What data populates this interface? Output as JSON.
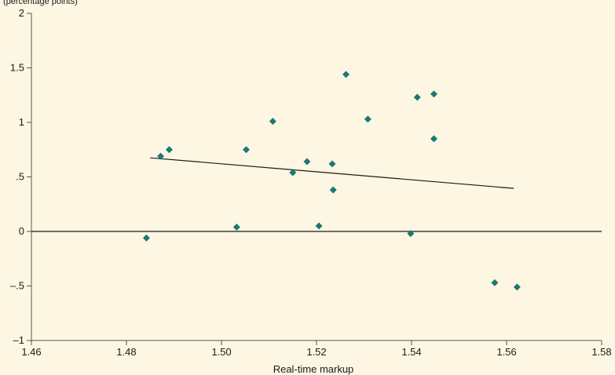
{
  "chart_data": {
    "type": "scatter",
    "title": "",
    "ylabel_top": "(percentage points)",
    "xlabel": "Real-time markup",
    "xlim": [
      1.46,
      1.58
    ],
    "ylim": [
      -1,
      2
    ],
    "x_ticks": [
      1.46,
      1.48,
      1.5,
      1.52,
      1.54,
      1.56,
      1.58
    ],
    "x_tick_labels": [
      "1.46",
      "1.48",
      "1.50",
      "1.52",
      "1.54",
      "1.56",
      "1.58"
    ],
    "y_ticks": [
      -1,
      -0.5,
      0,
      0.5,
      1,
      1.5,
      2
    ],
    "y_tick_labels": [
      "–1",
      "–.5",
      "0",
      ".5",
      "1",
      "1.5",
      "2"
    ],
    "zero_line": true,
    "grid": false,
    "colors": {
      "background": "#fdf6e3",
      "marker": "#1a7a72",
      "line": "#1a1a1a",
      "axis": "#555555"
    },
    "series": [
      {
        "points": [
          {
            "x": 1.4842,
            "y": -0.06
          },
          {
            "x": 1.4872,
            "y": 0.69
          },
          {
            "x": 1.489,
            "y": 0.75
          },
          {
            "x": 1.5032,
            "y": 0.04
          },
          {
            "x": 1.5052,
            "y": 0.75
          },
          {
            "x": 1.5108,
            "y": 1.01
          },
          {
            "x": 1.515,
            "y": 0.54
          },
          {
            "x": 1.518,
            "y": 0.64
          },
          {
            "x": 1.5205,
            "y": 0.05
          },
          {
            "x": 1.5233,
            "y": 0.62
          },
          {
            "x": 1.5235,
            "y": 0.38
          },
          {
            "x": 1.5262,
            "y": 1.44
          },
          {
            "x": 1.5308,
            "y": 1.03
          },
          {
            "x": 1.5398,
            "y": -0.02
          },
          {
            "x": 1.5412,
            "y": 1.23
          },
          {
            "x": 1.5447,
            "y": 1.26
          },
          {
            "x": 1.5447,
            "y": 0.85
          },
          {
            "x": 1.5575,
            "y": -0.47
          },
          {
            "x": 1.5622,
            "y": -0.51
          }
        ]
      }
    ],
    "fit_line": {
      "x": [
        1.485,
        1.5615
      ],
      "y": [
        0.675,
        0.395
      ]
    }
  }
}
